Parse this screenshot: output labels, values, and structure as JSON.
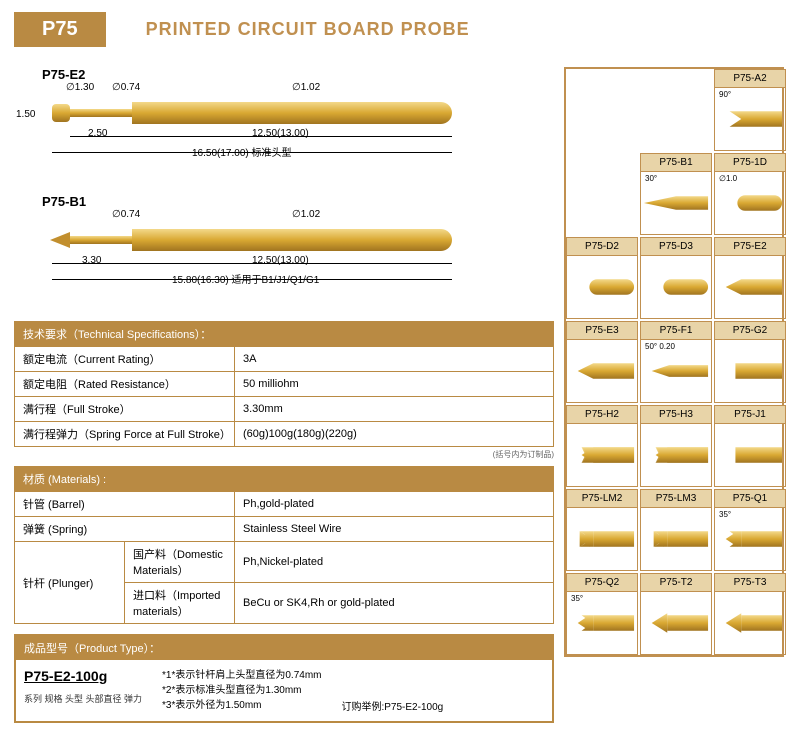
{
  "header": {
    "badge": "P75",
    "title": "PRINTED CIRCUIT BOARD  PROBE"
  },
  "diagrams": {
    "e2": {
      "label": "P75-E2",
      "d1": "∅1.30",
      "d2": "∅0.74",
      "d3": "∅1.02",
      "h": "1.50",
      "seg1": "2.50",
      "seg2": "12.50(13.00)",
      "total": "16.50(17.00) 标准头型"
    },
    "b1": {
      "label": "P75-B1",
      "d2": "∅0.74",
      "d3": "∅1.02",
      "seg1": "3.30",
      "seg2": "12.50(13.00)",
      "total": "15.80(16.30) 适用于B1/J1/Q1/G1"
    }
  },
  "specs": {
    "title": "技术要求（Technical Specifications）：",
    "rows": [
      {
        "k": "额定电流（Current Rating）",
        "v": "3A"
      },
      {
        "k": "额定电阻（Rated Resistance）",
        "v": "50 milliohm"
      },
      {
        "k": "满行程（Full Stroke）",
        "v": "3.30mm"
      },
      {
        "k": "满行程弹力（Spring Force at Full Stroke）",
        "v": "(60g)100g(180g)(220g)"
      }
    ],
    "note": "(括号内为订制品)"
  },
  "materials": {
    "title": "材质 (Materials) :",
    "barrel_k": "针管 (Barrel)",
    "barrel_v": "Ph,gold-plated",
    "spring_k": "弹簧 (Spring)",
    "spring_v": "Stainless Steel Wire",
    "plunger_k": "针杆 (Plunger)",
    "plunger_dom_k": "国产料（Domestic Materials）",
    "plunger_dom_v": "Ph,Nickel-plated",
    "plunger_imp_k": "进口料（Imported materials）",
    "plunger_imp_v": "BeCu or SK4,Rh or gold-plated"
  },
  "product": {
    "title": "成品型号（Product Type）：",
    "code": "P75-E2-100g",
    "legend": "系列 规格 头型 头部直径  弹力",
    "notes": [
      "*1*表示针杆肩上头型直径为0.74mm",
      "*2*表示标准头型直径为1.30mm",
      "*3*表示外径为1.50mm"
    ],
    "example": "订购举例:P75-E2-100g"
  },
  "tips": {
    "grid": [
      [
        "",
        "",
        "P75-A2"
      ],
      [
        "",
        "P75-B1",
        "P75-1D"
      ],
      [
        "P75-D2",
        "P75-D3",
        "P75-E2"
      ],
      [
        "P75-E3",
        "P75-F1",
        "P75-G2"
      ],
      [
        "P75-H2",
        "P75-H3",
        "P75-J1"
      ],
      [
        "P75-LM2",
        "P75-LM3",
        "P75-Q1"
      ],
      [
        "P75-Q2",
        "P75-T2",
        "P75-T3"
      ]
    ],
    "annotations": {
      "P75-A2": "90°",
      "P75-B1": "30°",
      "P75-1D": "∅1.0",
      "P75-F1": "50°  0.20",
      "P75-Q1": "35°",
      "P75-Q2": "35°"
    },
    "shape_map": {
      "P75-A2": "vcut",
      "P75-B1": "needle",
      "P75-1D": "round",
      "P75-D2": "round",
      "P75-D3": "round",
      "P75-E2": "cone",
      "P75-E3": "cone",
      "P75-F1": "chisel",
      "P75-G2": "flat",
      "P75-H2": "serrated",
      "P75-H3": "serrated",
      "P75-J1": "flat",
      "P75-LM2": "crown",
      "P75-LM3": "crown",
      "P75-Q1": "star",
      "P75-Q2": "star",
      "P75-T2": "spear",
      "P75-T3": "spear"
    }
  },
  "colors": {
    "gold_light": "#f3d98a",
    "gold_mid": "#d9a832",
    "gold_dark": "#a07420",
    "frame": "#b98a43"
  }
}
